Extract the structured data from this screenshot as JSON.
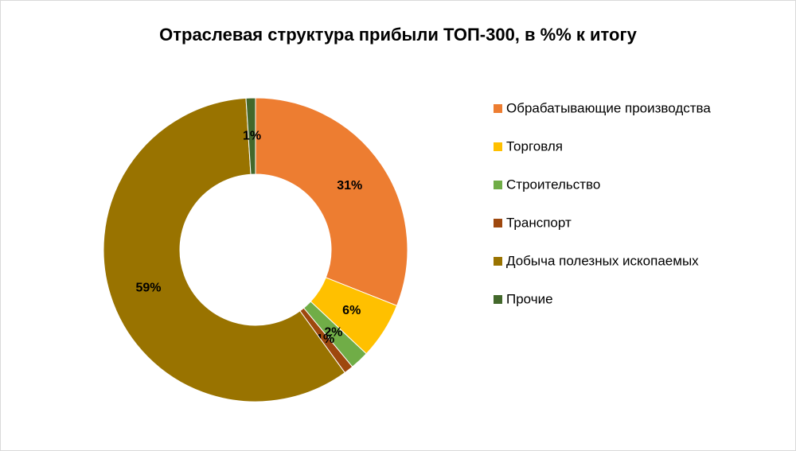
{
  "chart_data": {
    "type": "donut",
    "title": "Отраслевая структура прибыли ТОП-300, в %% к итогу",
    "categories": [
      "Обрабатывающие производства",
      "Торговля",
      "Строительство",
      "Транспорт",
      "Добыча полезных ископаемых",
      "Прочие"
    ],
    "values": [
      31,
      6,
      2,
      1,
      59,
      1
    ],
    "value_labels": [
      "31%",
      "6%",
      "2%",
      "1%",
      "59%",
      "1%"
    ],
    "colors": [
      "#ED7D31",
      "#FFC000",
      "#70AD47",
      "#9E480E",
      "#997300",
      "#43682B"
    ],
    "legend": "right"
  }
}
